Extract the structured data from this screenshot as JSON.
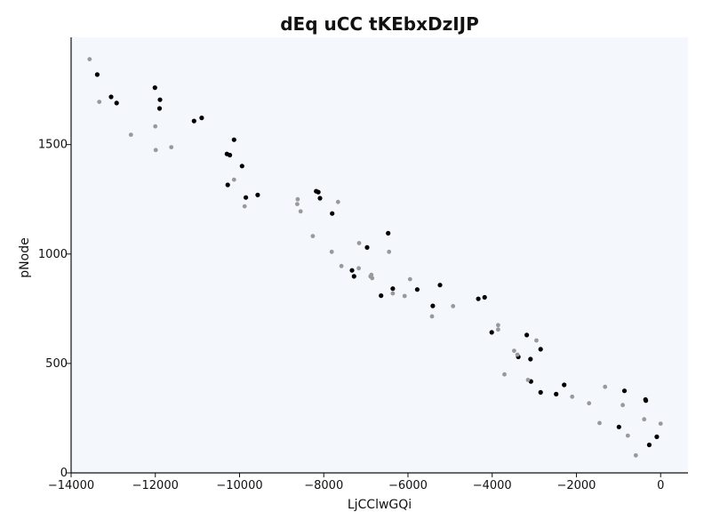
{
  "chart_data": {
    "type": "scatter",
    "title": "dEq uCC tKEbxDzIJP",
    "xlabel": "LjCClwGQi",
    "ylabel": "pNode",
    "xlim": [
      -14000,
      650
    ],
    "ylim": [
      0,
      1990
    ],
    "xticks": [
      -14000,
      -12000,
      -10000,
      -8000,
      -6000,
      -4000,
      -2000,
      0
    ],
    "xtick_labels": [
      "−14000",
      "−12000",
      "−10000",
      "−8000",
      "−6000",
      "−4000",
      "−2000",
      "0"
    ],
    "yticks": [
      0,
      500,
      1000,
      1500
    ],
    "ytick_labels": [
      "0",
      "500",
      "1000",
      "1500"
    ],
    "grid": false,
    "background": "#f4f8fc",
    "series": [
      {
        "color": "#000000",
        "points": [
          [
            -13380,
            1820
          ],
          [
            -13050,
            1718
          ],
          [
            -12920,
            1690
          ],
          [
            -12010,
            1760
          ],
          [
            -11890,
            1705
          ],
          [
            -11900,
            1665
          ],
          [
            -11080,
            1608
          ],
          [
            -10900,
            1622
          ],
          [
            -10300,
            1457
          ],
          [
            -10230,
            1452
          ],
          [
            -10130,
            1522
          ],
          [
            -9940,
            1402
          ],
          [
            -10280,
            1316
          ],
          [
            -9850,
            1258
          ],
          [
            -9570,
            1270
          ],
          [
            -8180,
            1287
          ],
          [
            -8130,
            1283
          ],
          [
            -8090,
            1255
          ],
          [
            -7800,
            1185
          ],
          [
            -7330,
            925
          ],
          [
            -7280,
            898
          ],
          [
            -6970,
            1030
          ],
          [
            -6470,
            1095
          ],
          [
            -6640,
            810
          ],
          [
            -6360,
            842
          ],
          [
            -5780,
            838
          ],
          [
            -5240,
            858
          ],
          [
            -5410,
            763
          ],
          [
            -4330,
            795
          ],
          [
            -4180,
            802
          ],
          [
            -4010,
            642
          ],
          [
            -3180,
            630
          ],
          [
            -3090,
            520
          ],
          [
            -2850,
            565
          ],
          [
            -3380,
            530
          ],
          [
            -3080,
            418
          ],
          [
            -2850,
            368
          ],
          [
            -2480,
            360
          ],
          [
            -2290,
            402
          ],
          [
            -860,
            375
          ],
          [
            -990,
            210
          ],
          [
            -360,
            335
          ],
          [
            -350,
            330
          ],
          [
            -270,
            128
          ],
          [
            -90,
            165
          ]
        ]
      },
      {
        "color": "#999999",
        "points": [
          [
            -13560,
            1890
          ],
          [
            -13330,
            1695
          ],
          [
            -12580,
            1545
          ],
          [
            -12000,
            1583
          ],
          [
            -11990,
            1475
          ],
          [
            -11620,
            1488
          ],
          [
            -10130,
            1340
          ],
          [
            -9880,
            1218
          ],
          [
            -8630,
            1228
          ],
          [
            -8620,
            1250
          ],
          [
            -8550,
            1195
          ],
          [
            -8260,
            1082
          ],
          [
            -7660,
            1238
          ],
          [
            -7810,
            1010
          ],
          [
            -7580,
            945
          ],
          [
            -7170,
            935
          ],
          [
            -7160,
            1050
          ],
          [
            -6870,
            905
          ],
          [
            -6890,
            898
          ],
          [
            -6850,
            890
          ],
          [
            -6450,
            1010
          ],
          [
            -6360,
            820
          ],
          [
            -6080,
            808
          ],
          [
            -5950,
            885
          ],
          [
            -5430,
            715
          ],
          [
            -4930,
            762
          ],
          [
            -3860,
            675
          ],
          [
            -3860,
            655
          ],
          [
            -3710,
            450
          ],
          [
            -3480,
            558
          ],
          [
            -3400,
            540
          ],
          [
            -3150,
            425
          ],
          [
            -2950,
            605
          ],
          [
            -2100,
            348
          ],
          [
            -1700,
            318
          ],
          [
            -1450,
            228
          ],
          [
            -1320,
            393
          ],
          [
            -900,
            310
          ],
          [
            -780,
            170
          ],
          [
            -590,
            80
          ],
          [
            -390,
            245
          ],
          [
            0,
            225
          ]
        ]
      }
    ]
  }
}
